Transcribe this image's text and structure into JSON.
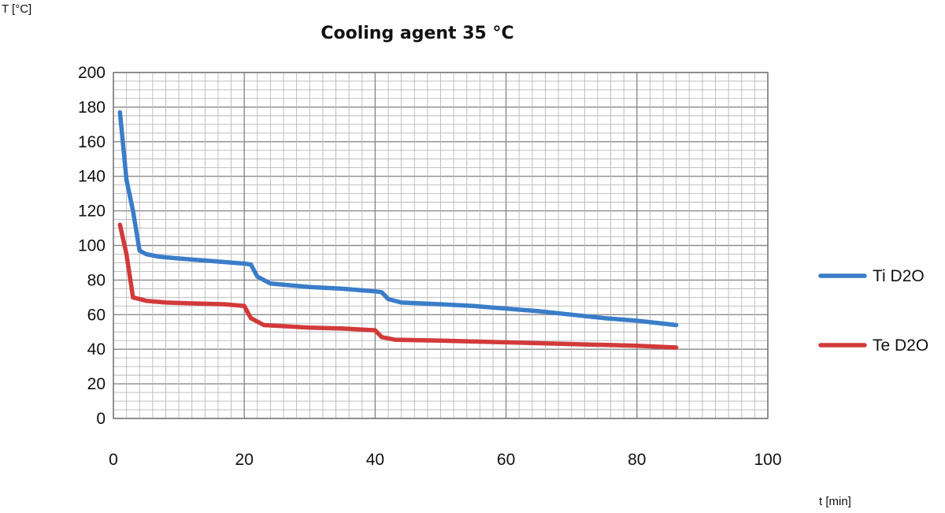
{
  "chart_data": {
    "type": "line",
    "title": "Cooling agent  35 °C",
    "ylabel": "T [°C]",
    "xlabel": "t [min]",
    "xlim": [
      0,
      100
    ],
    "ylim": [
      0,
      200
    ],
    "x_ticks": [
      0,
      20,
      40,
      60,
      80,
      100
    ],
    "y_ticks": [
      0,
      20,
      40,
      60,
      80,
      100,
      120,
      140,
      160,
      180,
      200
    ],
    "grid": true,
    "legend_position": "right",
    "series": [
      {
        "name": "Ti D2O",
        "color": "#3a7dc9",
        "points": [
          [
            1,
            177
          ],
          [
            2,
            138
          ],
          [
            3,
            120
          ],
          [
            4,
            97
          ],
          [
            5,
            95
          ],
          [
            7,
            93.5
          ],
          [
            10,
            92.5
          ],
          [
            15,
            91
          ],
          [
            20,
            89.5
          ],
          [
            21,
            89
          ],
          [
            22,
            82
          ],
          [
            24,
            78
          ],
          [
            30,
            76
          ],
          [
            35,
            75
          ],
          [
            40,
            73.5
          ],
          [
            41,
            73
          ],
          [
            42,
            69
          ],
          [
            44,
            67
          ],
          [
            50,
            66
          ],
          [
            55,
            65
          ],
          [
            60,
            63.5
          ],
          [
            65,
            62
          ],
          [
            70,
            60
          ],
          [
            75,
            58
          ],
          [
            80,
            56.5
          ],
          [
            86,
            54
          ]
        ]
      },
      {
        "name": "Te D2O",
        "color": "#d23a3a",
        "points": [
          [
            1,
            112
          ],
          [
            2,
            95
          ],
          [
            3,
            70
          ],
          [
            5,
            68
          ],
          [
            8,
            67
          ],
          [
            12,
            66.5
          ],
          [
            17,
            66
          ],
          [
            20,
            65
          ],
          [
            21,
            58
          ],
          [
            23,
            54
          ],
          [
            30,
            52.5
          ],
          [
            35,
            52
          ],
          [
            40,
            51
          ],
          [
            41,
            47
          ],
          [
            43,
            45.5
          ],
          [
            50,
            45
          ],
          [
            60,
            44
          ],
          [
            70,
            43
          ],
          [
            80,
            42
          ],
          [
            86,
            41
          ]
        ]
      }
    ]
  }
}
